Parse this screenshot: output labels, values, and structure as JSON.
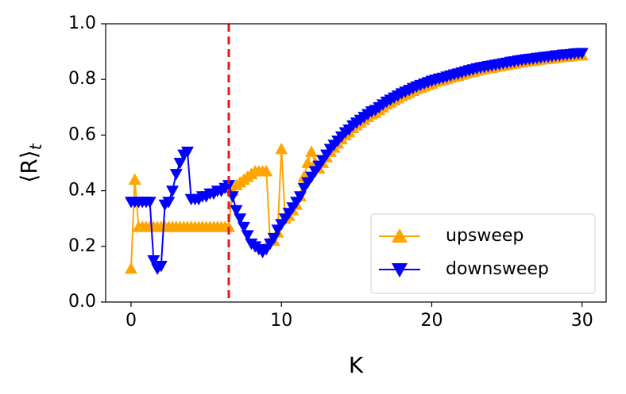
{
  "chart_data": {
    "type": "line",
    "xlabel": "K",
    "ylabel": {
      "main": "⟨R⟩",
      "sub": "t"
    },
    "xlim": [
      -1.69,
      31.6
    ],
    "ylim": [
      0,
      1
    ],
    "xticks": [
      0,
      10,
      20,
      30
    ],
    "yticks": [
      {
        "value": 0,
        "label": "0.0"
      },
      {
        "value": 0.2,
        "label": "0.2"
      },
      {
        "value": 0.4,
        "label": "0.4"
      },
      {
        "value": 0.6,
        "label": "0.6"
      },
      {
        "value": 0.8,
        "label": "0.8"
      },
      {
        "value": 1,
        "label": "1.0"
      }
    ],
    "grid": false,
    "legend": "lower right",
    "vline_x": 6.5,
    "vline_color": "#e31a1c",
    "x": [
      0,
      0.25,
      0.5,
      0.75,
      1,
      1.25,
      1.5,
      1.75,
      2,
      2.25,
      2.5,
      2.75,
      3,
      3.25,
      3.5,
      3.75,
      4,
      4.25,
      4.5,
      4.75,
      5,
      5.25,
      5.5,
      5.75,
      6,
      6.25,
      6.5,
      6.75,
      7,
      7.25,
      7.5,
      7.75,
      8,
      8.25,
      8.5,
      8.75,
      9,
      9.25,
      9.5,
      9.75,
      10,
      10.25,
      10.5,
      10.75,
      11,
      11.25,
      11.5,
      11.75,
      12,
      12.25,
      12.5,
      12.75,
      13,
      13.25,
      13.5,
      13.75,
      14,
      14.25,
      14.5,
      14.75,
      15,
      15.25,
      15.5,
      15.75,
      16,
      16.25,
      16.5,
      16.75,
      17,
      17.25,
      17.5,
      17.75,
      18,
      18.25,
      18.5,
      18.75,
      19,
      19.25,
      19.5,
      19.75,
      20,
      20.25,
      20.5,
      20.75,
      21,
      21.25,
      21.5,
      21.75,
      22,
      22.25,
      22.5,
      22.75,
      23,
      23.25,
      23.5,
      23.75,
      24,
      24.25,
      24.5,
      24.75,
      25,
      25.25,
      25.5,
      25.75,
      26,
      26.25,
      26.5,
      26.75,
      27,
      27.25,
      27.5,
      27.75,
      28,
      28.25,
      28.5,
      28.75,
      29,
      29.25,
      29.5,
      29.75,
      30
    ],
    "series": [
      {
        "name": "upsweep",
        "color": "#ffa500",
        "marker": "triangle-up",
        "values": [
          0.12,
          0.44,
          0.27,
          0.27,
          0.27,
          0.27,
          0.27,
          0.27,
          0.27,
          0.27,
          0.27,
          0.27,
          0.27,
          0.27,
          0.27,
          0.27,
          0.27,
          0.27,
          0.27,
          0.27,
          0.27,
          0.27,
          0.27,
          0.27,
          0.27,
          0.27,
          0.27,
          0.4,
          0.42,
          0.43,
          0.44,
          0.45,
          0.46,
          0.47,
          0.47,
          0.47,
          0.47,
          0.22,
          0.22,
          0.25,
          0.55,
          0.3,
          0.31,
          0.33,
          0.35,
          0.38,
          0.45,
          0.5,
          0.54,
          0.5,
          0.48,
          0.5,
          0.52,
          0.54,
          0.555,
          0.57,
          0.585,
          0.6,
          0.61,
          0.625,
          0.635,
          0.645,
          0.655,
          0.665,
          0.675,
          0.68,
          0.69,
          0.7,
          0.71,
          0.717,
          0.725,
          0.732,
          0.74,
          0.746,
          0.752,
          0.759,
          0.765,
          0.77,
          0.775,
          0.78,
          0.785,
          0.791,
          0.795,
          0.798,
          0.802,
          0.806,
          0.81,
          0.813,
          0.817,
          0.821,
          0.825,
          0.828,
          0.832,
          0.835,
          0.837,
          0.84,
          0.842,
          0.845,
          0.847,
          0.85,
          0.852,
          0.855,
          0.857,
          0.86,
          0.862,
          0.864,
          0.866,
          0.867,
          0.869,
          0.871,
          0.873,
          0.874,
          0.876,
          0.878,
          0.879,
          0.881,
          0.882,
          0.883,
          0.885,
          0.886,
          0.887
        ]
      },
      {
        "name": "downsweep",
        "color": "#0000ff",
        "marker": "triangle-down",
        "values": [
          0.36,
          0.36,
          0.36,
          0.36,
          0.36,
          0.36,
          0.15,
          0.12,
          0.13,
          0.35,
          0.36,
          0.4,
          0.46,
          0.5,
          0.53,
          0.54,
          0.37,
          0.37,
          0.37,
          0.38,
          0.38,
          0.39,
          0.39,
          0.4,
          0.4,
          0.41,
          0.42,
          0.38,
          0.33,
          0.3,
          0.27,
          0.24,
          0.21,
          0.2,
          0.19,
          0.18,
          0.19,
          0.21,
          0.23,
          0.26,
          0.28,
          0.3,
          0.32,
          0.34,
          0.36,
          0.38,
          0.41,
          0.43,
          0.45,
          0.47,
          0.49,
          0.51,
          0.53,
          0.55,
          0.565,
          0.58,
          0.595,
          0.61,
          0.62,
          0.635,
          0.645,
          0.655,
          0.665,
          0.675,
          0.685,
          0.69,
          0.7,
          0.71,
          0.72,
          0.727,
          0.735,
          0.742,
          0.75,
          0.756,
          0.762,
          0.769,
          0.775,
          0.78,
          0.785,
          0.79,
          0.795,
          0.799,
          0.803,
          0.806,
          0.81,
          0.814,
          0.818,
          0.821,
          0.825,
          0.829,
          0.833,
          0.836,
          0.84,
          0.843,
          0.845,
          0.848,
          0.85,
          0.853,
          0.855,
          0.858,
          0.86,
          0.863,
          0.865,
          0.868,
          0.87,
          0.872,
          0.874,
          0.875,
          0.877,
          0.879,
          0.881,
          0.882,
          0.884,
          0.886,
          0.887,
          0.889,
          0.89,
          0.891,
          0.893,
          0.894,
          0.895
        ]
      }
    ]
  }
}
